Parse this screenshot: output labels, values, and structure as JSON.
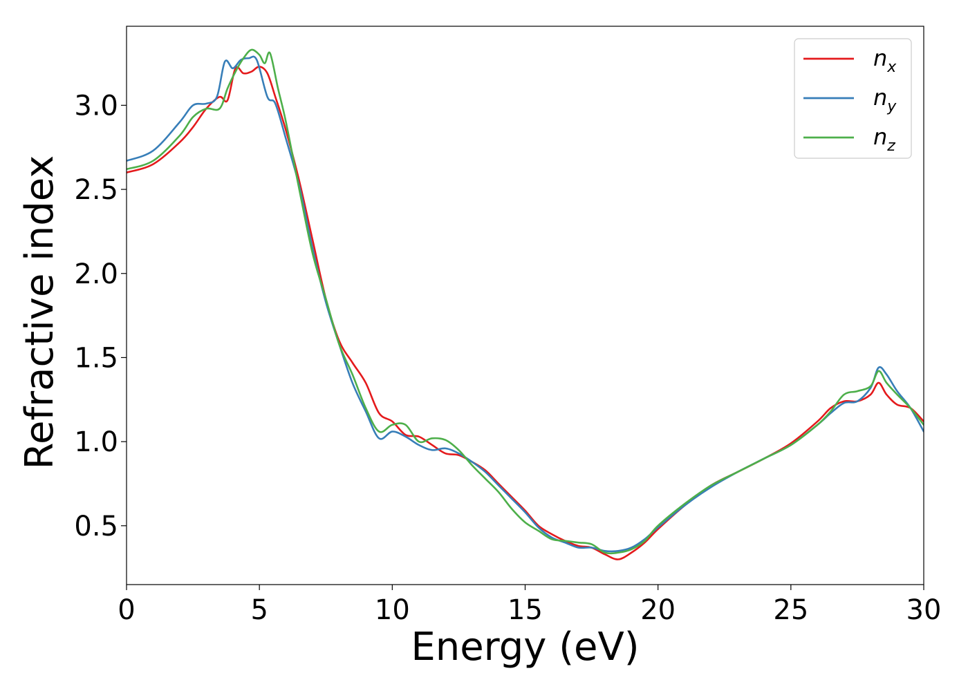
{
  "chart_data": {
    "type": "line",
    "title": "",
    "xlabel": "Energy (eV)",
    "ylabel": "Refractive index",
    "xlim": [
      0,
      30
    ],
    "ylim": [
      0.15,
      3.47
    ],
    "xticks": [
      0,
      5,
      10,
      15,
      20,
      25,
      30
    ],
    "xtick_labels": [
      "0",
      "5",
      "10",
      "15",
      "20",
      "25",
      "30"
    ],
    "yticks": [
      0.5,
      1.0,
      1.5,
      2.0,
      2.5,
      3.0
    ],
    "ytick_labels": [
      "0.5",
      "1.0",
      "1.5",
      "2.0",
      "2.5",
      "3.0"
    ],
    "grid": false,
    "legend_position": "top-right",
    "series": [
      {
        "name": "n",
        "subscript": "x",
        "color": "#e41a1c",
        "x": [
          0,
          1,
          2,
          2.5,
          3,
          3.5,
          3.8,
          4.1,
          4.4,
          4.7,
          5.0,
          5.3,
          5.6,
          6,
          6.5,
          7,
          7.5,
          8,
          8.5,
          9,
          9.5,
          10,
          10.5,
          11,
          11.5,
          12,
          12.5,
          13,
          13.5,
          14,
          14.5,
          15,
          15.5,
          16,
          16.5,
          17,
          17.5,
          18,
          18.5,
          19,
          19.5,
          20,
          21,
          22,
          23,
          24,
          25,
          26,
          26.5,
          27,
          27.5,
          28,
          28.3,
          28.6,
          29,
          29.5,
          30
        ],
        "y": [
          2.6,
          2.65,
          2.78,
          2.87,
          2.98,
          3.05,
          3.03,
          3.22,
          3.19,
          3.2,
          3.23,
          3.19,
          3.05,
          2.85,
          2.55,
          2.2,
          1.85,
          1.6,
          1.47,
          1.35,
          1.17,
          1.12,
          1.04,
          1.03,
          0.98,
          0.93,
          0.92,
          0.88,
          0.83,
          0.75,
          0.67,
          0.59,
          0.5,
          0.45,
          0.41,
          0.38,
          0.37,
          0.33,
          0.3,
          0.34,
          0.4,
          0.48,
          0.62,
          0.74,
          0.82,
          0.9,
          0.99,
          1.12,
          1.2,
          1.24,
          1.24,
          1.28,
          1.35,
          1.28,
          1.22,
          1.2,
          1.12
        ]
      },
      {
        "name": "n",
        "subscript": "y",
        "color": "#377eb8",
        "x": [
          0,
          1,
          2,
          2.5,
          3,
          3.4,
          3.7,
          4.0,
          4.3,
          4.6,
          4.9,
          5.3,
          5.6,
          6,
          6.5,
          7,
          7.5,
          8,
          8.5,
          9,
          9.5,
          10,
          10.5,
          11,
          11.5,
          12,
          12.5,
          13,
          13.5,
          14,
          14.5,
          15,
          15.5,
          16,
          16.5,
          17,
          17.5,
          18,
          18.5,
          19,
          19.5,
          20,
          21,
          22,
          23,
          24,
          25,
          26,
          26.5,
          27,
          27.5,
          28,
          28.3,
          28.6,
          29,
          29.5,
          30
        ],
        "y": [
          2.67,
          2.73,
          2.9,
          3.0,
          3.01,
          3.05,
          3.26,
          3.22,
          3.27,
          3.28,
          3.27,
          3.05,
          3.01,
          2.8,
          2.52,
          2.15,
          1.83,
          1.58,
          1.35,
          1.18,
          1.02,
          1.06,
          1.03,
          0.98,
          0.95,
          0.96,
          0.93,
          0.88,
          0.82,
          0.74,
          0.66,
          0.58,
          0.49,
          0.43,
          0.4,
          0.37,
          0.37,
          0.35,
          0.35,
          0.37,
          0.42,
          0.49,
          0.62,
          0.73,
          0.82,
          0.9,
          0.98,
          1.1,
          1.17,
          1.23,
          1.24,
          1.32,
          1.44,
          1.4,
          1.3,
          1.2,
          1.06
        ]
      },
      {
        "name": "n",
        "subscript": "z",
        "color": "#4daf4a",
        "x": [
          0,
          1,
          2,
          2.5,
          3,
          3.5,
          3.8,
          4.1,
          4.4,
          4.7,
          5.0,
          5.2,
          5.4,
          5.7,
          6,
          6.5,
          7,
          7.5,
          8,
          8.5,
          9,
          9.5,
          10,
          10.5,
          11,
          11.5,
          12,
          12.5,
          13,
          13.5,
          14,
          14.5,
          15,
          15.5,
          16,
          16.5,
          17,
          17.5,
          18,
          18.5,
          19,
          19.5,
          20,
          21,
          22,
          23,
          24,
          25,
          26,
          26.5,
          27,
          27.5,
          28,
          28.3,
          28.6,
          29,
          29.5,
          30
        ],
        "y": [
          2.62,
          2.67,
          2.82,
          2.93,
          2.98,
          2.98,
          3.1,
          3.2,
          3.28,
          3.33,
          3.3,
          3.25,
          3.31,
          3.1,
          2.9,
          2.5,
          2.12,
          1.85,
          1.58,
          1.4,
          1.2,
          1.06,
          1.1,
          1.1,
          1.0,
          1.02,
          1.01,
          0.95,
          0.86,
          0.78,
          0.7,
          0.6,
          0.52,
          0.47,
          0.42,
          0.41,
          0.4,
          0.39,
          0.34,
          0.34,
          0.36,
          0.41,
          0.5,
          0.63,
          0.74,
          0.82,
          0.9,
          0.98,
          1.1,
          1.18,
          1.28,
          1.3,
          1.33,
          1.42,
          1.35,
          1.28,
          1.2,
          1.1
        ]
      }
    ]
  }
}
